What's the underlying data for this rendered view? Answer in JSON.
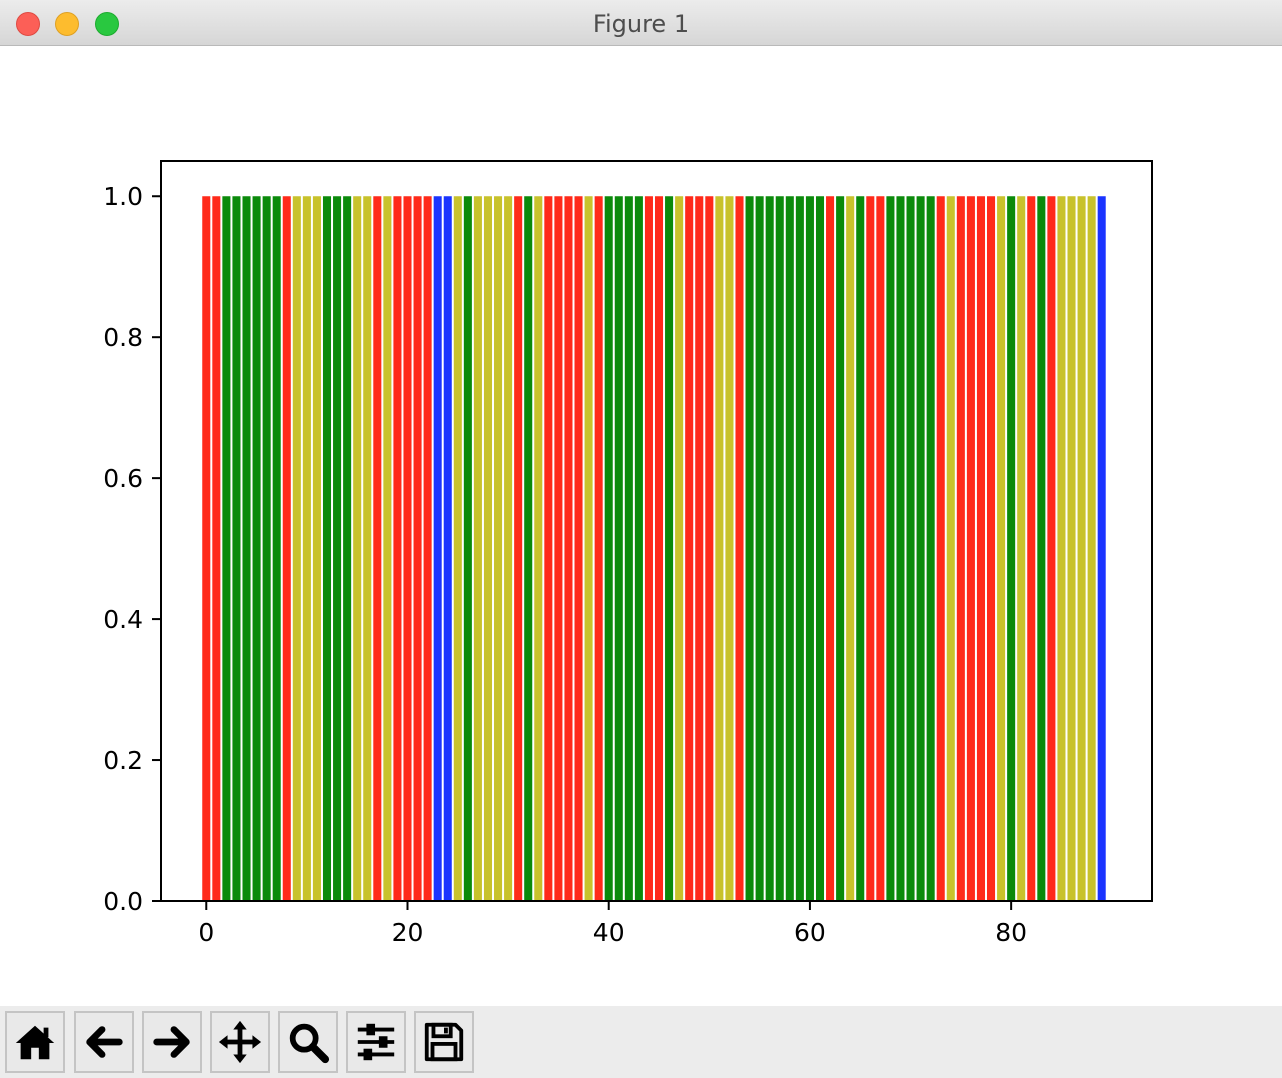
{
  "window": {
    "title": "Figure 1"
  },
  "toolbar": {
    "buttons": [
      {
        "name": "home-button",
        "icon": "home-icon"
      },
      {
        "name": "back-button",
        "icon": "arrow-left-icon"
      },
      {
        "name": "forward-button",
        "icon": "arrow-right-icon"
      },
      {
        "name": "pan-button",
        "icon": "move-icon"
      },
      {
        "name": "zoom-button",
        "icon": "search-icon"
      },
      {
        "name": "configure-subplots-button",
        "icon": "sliders-icon"
      },
      {
        "name": "save-button",
        "icon": "floppy-disk-icon"
      }
    ]
  },
  "chart_data": {
    "type": "bar",
    "title": "",
    "xlabel": "",
    "ylabel": "",
    "x": [
      0,
      1,
      2,
      3,
      4,
      5,
      6,
      7,
      8,
      9,
      10,
      11,
      12,
      13,
      14,
      15,
      16,
      17,
      18,
      19,
      20,
      21,
      22,
      23,
      24,
      25,
      26,
      27,
      28,
      29,
      30,
      31,
      32,
      33,
      34,
      35,
      36,
      37,
      38,
      39,
      40,
      41,
      42,
      43,
      44,
      45,
      46,
      47,
      48,
      49,
      50,
      51,
      52,
      53,
      54,
      55,
      56,
      57,
      58,
      59,
      60,
      61,
      62,
      63,
      64,
      65,
      66,
      67,
      68,
      69,
      70,
      71,
      72,
      73,
      74,
      75,
      76,
      77,
      78,
      79,
      80,
      81,
      82,
      83,
      84,
      85,
      86,
      87,
      88,
      89
    ],
    "values": [
      1,
      1,
      1,
      1,
      1,
      1,
      1,
      1,
      1,
      1,
      1,
      1,
      1,
      1,
      1,
      1,
      1,
      1,
      1,
      1,
      1,
      1,
      1,
      1,
      1,
      1,
      1,
      1,
      1,
      1,
      1,
      1,
      1,
      1,
      1,
      1,
      1,
      1,
      1,
      1,
      1,
      1,
      1,
      1,
      1,
      1,
      1,
      1,
      1,
      1,
      1,
      1,
      1,
      1,
      1,
      1,
      1,
      1,
      1,
      1,
      1,
      1,
      1,
      1,
      1,
      1,
      1,
      1,
      1,
      1,
      1,
      1,
      1,
      1,
      1,
      1,
      1,
      1,
      1,
      1,
      1,
      1,
      1,
      1,
      1,
      1,
      1,
      1,
      1,
      1
    ],
    "bar_colors": [
      "r",
      "r",
      "g",
      "g",
      "g",
      "g",
      "g",
      "g",
      "r",
      "y",
      "y",
      "y",
      "g",
      "g",
      "g",
      "y",
      "y",
      "r",
      "y",
      "r",
      "r",
      "r",
      "r",
      "b",
      "b",
      "y",
      "g",
      "y",
      "y",
      "y",
      "y",
      "r",
      "g",
      "y",
      "r",
      "r",
      "r",
      "r",
      "y",
      "r",
      "g",
      "g",
      "g",
      "g",
      "r",
      "r",
      "g",
      "y",
      "r",
      "r",
      "r",
      "y",
      "y",
      "r",
      "g",
      "g",
      "g",
      "g",
      "g",
      "g",
      "g",
      "g",
      "r",
      "g",
      "y",
      "g",
      "r",
      "r",
      "g",
      "g",
      "g",
      "g",
      "g",
      "r",
      "y",
      "r",
      "r",
      "r",
      "r",
      "y",
      "g",
      "y",
      "r",
      "g",
      "r",
      "y",
      "y",
      "y",
      "y",
      "b"
    ],
    "color_map": {
      "r": "#ff2a1a",
      "g": "#0b8a0b",
      "y": "#c8c22c",
      "b": "#1a34ff"
    },
    "xlim": [
      -4.5,
      94
    ],
    "ylim": [
      0,
      1.05
    ],
    "xticks": [
      0,
      20,
      40,
      60,
      80
    ],
    "xtick_labels": [
      "0",
      "20",
      "40",
      "60",
      "80"
    ],
    "yticks": [
      0,
      0.2,
      0.4,
      0.6,
      0.8,
      1.0
    ],
    "ytick_labels": [
      "0.0",
      "0.2",
      "0.4",
      "0.6",
      "0.8",
      "1.0"
    ],
    "grid": false,
    "legend": "none"
  }
}
